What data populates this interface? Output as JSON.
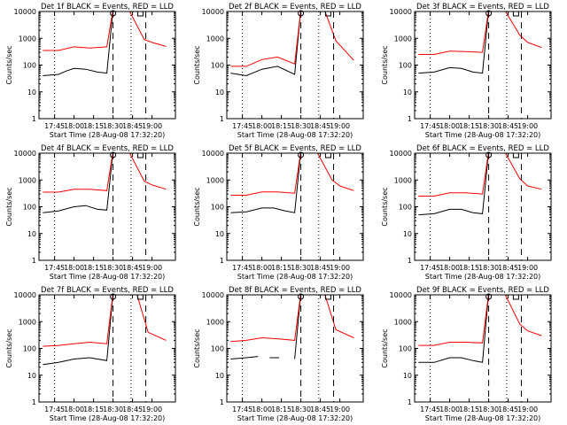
{
  "chart_data": [
    {
      "type": "line",
      "title": "Det 1f BLACK = Events, RED = LLD",
      "xlabel": "Start Time (28-Aug-08 17:32:20)",
      "ylabel": "Counts/sec",
      "yscale": "log",
      "ylim": [
        1,
        10000
      ],
      "xticks": [
        "17:45",
        "18:00",
        "18:15",
        "18:30",
        "18:45",
        "19:00"
      ],
      "yticks": [
        "1",
        "10",
        "100",
        "1000",
        "10000"
      ],
      "series": [
        {
          "name": "Events",
          "color": "#000000",
          "values": [
            [
              17.6,
              40
            ],
            [
              17.8,
              45
            ],
            [
              17.9,
              60
            ],
            [
              18.0,
              75
            ],
            [
              18.15,
              70
            ],
            [
              18.3,
              55
            ],
            [
              18.42,
              50
            ],
            [
              18.5,
              12000
            ],
            [
              18.6,
              12000
            ]
          ]
        },
        {
          "name": "LLD",
          "color": "#ff0000",
          "values": [
            [
              17.6,
              350
            ],
            [
              17.8,
              350
            ],
            [
              18.0,
              480
            ],
            [
              18.2,
              430
            ],
            [
              18.42,
              480
            ],
            [
              18.5,
              12000
            ],
            [
              18.7,
              12000
            ],
            [
              18.9,
              900
            ],
            [
              19.0,
              700
            ],
            [
              19.18,
              500
            ]
          ]
        }
      ]
    },
    {
      "type": "line",
      "title": "Det 2f BLACK = Events, RED = LLD",
      "xlabel": "Start Time (28-Aug-08 17:32:20)",
      "ylabel": "Counts/sec",
      "yscale": "log",
      "ylim": [
        1,
        10000
      ],
      "xticks": [
        "17:45",
        "18:00",
        "18:15",
        "18:30",
        "18:45",
        "19:00"
      ],
      "yticks": [
        "1",
        "10",
        "100",
        "1000",
        "10000"
      ],
      "series": [
        {
          "name": "Events",
          "color": "#000000",
          "values": [
            [
              17.6,
              50
            ],
            [
              17.8,
              40
            ],
            [
              18.0,
              70
            ],
            [
              18.2,
              90
            ],
            [
              18.42,
              45
            ],
            [
              18.5,
              12000
            ],
            [
              18.6,
              12000
            ]
          ]
        },
        {
          "name": "LLD",
          "color": "#ff0000",
          "values": [
            [
              17.6,
              90
            ],
            [
              17.8,
              90
            ],
            [
              18.0,
              160
            ],
            [
              18.2,
              200
            ],
            [
              18.42,
              110
            ],
            [
              18.5,
              12000
            ],
            [
              18.8,
              12000
            ],
            [
              18.95,
              800
            ],
            [
              19.18,
              150
            ]
          ]
        }
      ]
    },
    {
      "type": "line",
      "title": "Det 3f BLACK = Events, RED = LLD",
      "xlabel": "Start Time (28-Aug-08 17:32:20)",
      "ylabel": "Counts/sec",
      "yscale": "log",
      "ylim": [
        1,
        10000
      ],
      "xticks": [
        "17:45",
        "18:00",
        "18:15",
        "18:30",
        "18:45",
        "19:00"
      ],
      "yticks": [
        "1",
        "10",
        "100",
        "1000",
        "10000"
      ],
      "series": [
        {
          "name": "Events",
          "color": "#000000",
          "values": [
            [
              17.6,
              50
            ],
            [
              17.8,
              55
            ],
            [
              18.0,
              80
            ],
            [
              18.15,
              75
            ],
            [
              18.3,
              55
            ],
            [
              18.42,
              50
            ],
            [
              18.5,
              12000
            ],
            [
              18.6,
              12000
            ]
          ]
        },
        {
          "name": "LLD",
          "color": "#ff0000",
          "values": [
            [
              17.6,
              250
            ],
            [
              17.8,
              250
            ],
            [
              18.0,
              330
            ],
            [
              18.2,
              320
            ],
            [
              18.42,
              300
            ],
            [
              18.5,
              12000
            ],
            [
              18.7,
              12000
            ],
            [
              18.9,
              1300
            ],
            [
              19.0,
              700
            ],
            [
              19.18,
              450
            ]
          ]
        }
      ]
    },
    {
      "type": "line",
      "title": "Det 4f BLACK = Events, RED = LLD",
      "xlabel": "Start Time (28-Aug-08 17:32:20)",
      "ylabel": "Counts/sec",
      "yscale": "log",
      "ylim": [
        1,
        10000
      ],
      "xticks": [
        "17:45",
        "18:00",
        "18:15",
        "18:30",
        "18:45",
        "19:00"
      ],
      "yticks": [
        "1",
        "10",
        "100",
        "1000",
        "10000"
      ],
      "series": [
        {
          "name": "Events",
          "color": "#000000",
          "values": [
            [
              17.6,
              60
            ],
            [
              17.8,
              70
            ],
            [
              18.0,
              100
            ],
            [
              18.15,
              110
            ],
            [
              18.3,
              80
            ],
            [
              18.42,
              75
            ],
            [
              18.5,
              12000
            ],
            [
              18.6,
              12000
            ]
          ]
        },
        {
          "name": "LLD",
          "color": "#ff0000",
          "values": [
            [
              17.6,
              350
            ],
            [
              17.8,
              350
            ],
            [
              18.0,
              450
            ],
            [
              18.2,
              450
            ],
            [
              18.42,
              400
            ],
            [
              18.5,
              12000
            ],
            [
              18.7,
              12000
            ],
            [
              18.9,
              900
            ],
            [
              19.0,
              650
            ],
            [
              19.18,
              450
            ]
          ]
        }
      ]
    },
    {
      "type": "line",
      "title": "Det 5f BLACK = Events, RED = LLD",
      "xlabel": "Start Time (28-Aug-08 17:32:20)",
      "ylabel": "Counts/sec",
      "yscale": "log",
      "ylim": [
        1,
        10000
      ],
      "xticks": [
        "17:45",
        "18:00",
        "18:15",
        "18:30",
        "18:45",
        "19:00"
      ],
      "yticks": [
        "1",
        "10",
        "100",
        "1000",
        "10000"
      ],
      "series": [
        {
          "name": "Events",
          "color": "#000000",
          "values": [
            [
              17.6,
              60
            ],
            [
              17.8,
              65
            ],
            [
              18.0,
              90
            ],
            [
              18.15,
              90
            ],
            [
              18.3,
              70
            ],
            [
              18.42,
              60
            ],
            [
              18.5,
              12000
            ],
            [
              18.6,
              12000
            ]
          ]
        },
        {
          "name": "LLD",
          "color": "#ff0000",
          "values": [
            [
              17.6,
              270
            ],
            [
              17.8,
              270
            ],
            [
              18.0,
              360
            ],
            [
              18.2,
              360
            ],
            [
              18.42,
              320
            ],
            [
              18.5,
              12000
            ],
            [
              18.7,
              12000
            ],
            [
              18.9,
              1000
            ],
            [
              19.0,
              600
            ],
            [
              19.18,
              400
            ]
          ]
        }
      ]
    },
    {
      "type": "line",
      "title": "Det 6f BLACK = Events, RED = LLD",
      "xlabel": "Start Time (28-Aug-08 17:32:20)",
      "ylabel": "Counts/sec",
      "yscale": "log",
      "ylim": [
        1,
        10000
      ],
      "xticks": [
        "17:45",
        "18:00",
        "18:15",
        "18:30",
        "18:45",
        "19:00"
      ],
      "yticks": [
        "1",
        "10",
        "100",
        "1000",
        "10000"
      ],
      "series": [
        {
          "name": "Events",
          "color": "#000000",
          "values": [
            [
              17.6,
              50
            ],
            [
              17.8,
              55
            ],
            [
              18.0,
              80
            ],
            [
              18.15,
              80
            ],
            [
              18.3,
              60
            ],
            [
              18.42,
              55
            ],
            [
              18.5,
              12000
            ],
            [
              18.6,
              12000
            ]
          ]
        },
        {
          "name": "LLD",
          "color": "#ff0000",
          "values": [
            [
              17.6,
              250
            ],
            [
              17.8,
              250
            ],
            [
              18.0,
              330
            ],
            [
              18.2,
              330
            ],
            [
              18.42,
              300
            ],
            [
              18.5,
              12000
            ],
            [
              18.7,
              12000
            ],
            [
              18.9,
              1100
            ],
            [
              19.0,
              600
            ],
            [
              19.18,
              450
            ]
          ]
        }
      ]
    },
    {
      "type": "line",
      "title": "Det 7f BLACK = Events, RED = LLD",
      "xlabel": "Start Time (28-Aug-08 17:32:20)",
      "ylabel": "Counts/sec",
      "yscale": "log",
      "ylim": [
        1,
        10000
      ],
      "xticks": [
        "17:45",
        "18:00",
        "18:15",
        "18:30",
        "18:45",
        "19:00"
      ],
      "yticks": [
        "1",
        "10",
        "100",
        "1000",
        "10000"
      ],
      "series": [
        {
          "name": "Events",
          "color": "#000000",
          "values": [
            [
              17.6,
              25
            ],
            [
              17.8,
              30
            ],
            [
              18.0,
              40
            ],
            [
              18.2,
              45
            ],
            [
              18.42,
              35
            ],
            [
              18.5,
              12000
            ],
            [
              18.6,
              12000
            ]
          ]
        },
        {
          "name": "LLD",
          "color": "#ff0000",
          "values": [
            [
              17.6,
              120
            ],
            [
              17.8,
              130
            ],
            [
              18.0,
              150
            ],
            [
              18.2,
              170
            ],
            [
              18.42,
              150
            ],
            [
              18.5,
              12000
            ],
            [
              18.8,
              12000
            ],
            [
              18.95,
              400
            ],
            [
              19.18,
              200
            ]
          ]
        }
      ]
    },
    {
      "type": "line",
      "title": "Det 8f BLACK = Events, RED = LLD",
      "xlabel": "Start Time (28-Aug-08 17:32:20)",
      "ylabel": "Counts/sec",
      "yscale": "log",
      "ylim": [
        1,
        10000
      ],
      "xticks": [
        "17:45",
        "18:00",
        "18:15",
        "18:30",
        "18:45",
        "19:00"
      ],
      "yticks": [
        "1",
        "10",
        "100",
        "1000",
        "10000"
      ],
      "series": [
        {
          "name": "Events",
          "color": "#000000",
          "values": [
            [
              17.6,
              40
            ],
            [
              17.8,
              45
            ],
            [
              17.95,
              50
            ],
            [
              18.0,
              null
            ],
            [
              18.1,
              45
            ],
            [
              18.22,
              45
            ],
            [
              18.28,
              null
            ],
            [
              18.42,
              40
            ],
            [
              18.5,
              12000
            ],
            [
              18.6,
              12000
            ]
          ]
        },
        {
          "name": "LLD",
          "color": "#ff0000",
          "values": [
            [
              17.6,
              180
            ],
            [
              17.8,
              200
            ],
            [
              18.0,
              250
            ],
            [
              18.2,
              230
            ],
            [
              18.42,
              200
            ],
            [
              18.5,
              12000
            ],
            [
              18.8,
              12000
            ],
            [
              18.95,
              500
            ],
            [
              19.18,
              250
            ]
          ]
        }
      ]
    },
    {
      "type": "line",
      "title": "Det 9f BLACK = Events, RED = LLD",
      "xlabel": "Start Time (28-Aug-08 17:32:20)",
      "ylabel": "Counts/sec",
      "yscale": "log",
      "ylim": [
        1,
        10000
      ],
      "xticks": [
        "17:45",
        "18:00",
        "18:15",
        "18:30",
        "18:45",
        "19:00"
      ],
      "yticks": [
        "1",
        "10",
        "100",
        "1000",
        "10000"
      ],
      "series": [
        {
          "name": "Events",
          "color": "#000000",
          "values": [
            [
              17.6,
              30
            ],
            [
              17.8,
              30
            ],
            [
              18.0,
              45
            ],
            [
              18.15,
              45
            ],
            [
              18.3,
              35
            ],
            [
              18.42,
              30
            ],
            [
              18.5,
              12000
            ],
            [
              18.6,
              12000
            ]
          ]
        },
        {
          "name": "LLD",
          "color": "#ff0000",
          "values": [
            [
              17.6,
              130
            ],
            [
              17.8,
              130
            ],
            [
              18.0,
              170
            ],
            [
              18.2,
              170
            ],
            [
              18.42,
              160
            ],
            [
              18.5,
              12000
            ],
            [
              18.7,
              12000
            ],
            [
              18.9,
              800
            ],
            [
              19.0,
              450
            ],
            [
              19.18,
              300
            ]
          ]
        }
      ]
    }
  ]
}
